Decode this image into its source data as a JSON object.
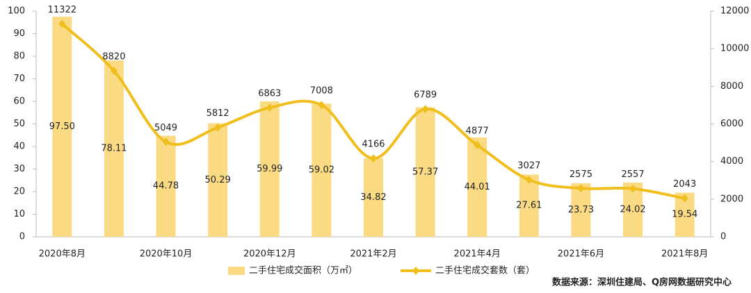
{
  "chart_data": {
    "type": "bar-line",
    "categories": [
      "2020年8月",
      null,
      "2020年10月",
      null,
      "2020年12月",
      null,
      "2021年2月",
      null,
      "2021年4月",
      null,
      "2021年6月",
      null,
      "2021年8月"
    ],
    "series": [
      {
        "name": "二手住宅成交面积（万㎡）",
        "type": "bar",
        "color": "#fadb84",
        "values": [
          97.5,
          78.11,
          44.78,
          50.29,
          59.99,
          59.02,
          34.82,
          57.37,
          44.01,
          27.61,
          23.73,
          24.02,
          19.54
        ],
        "value_labels": [
          "97.50",
          "78.11",
          "44.78",
          "50.29",
          "59.99",
          "59.02",
          "34.82",
          "57.37",
          "44.01",
          "27.61",
          "23.73",
          "24.02",
          "19.54"
        ]
      },
      {
        "name": "二手住宅成交套数（套）",
        "type": "line",
        "axis": "y2",
        "color": "#f0bf1e",
        "values": [
          11322,
          8820,
          5049,
          5812,
          6863,
          7008,
          4166,
          6789,
          4877,
          3027,
          2575,
          2557,
          2043
        ]
      }
    ],
    "ylim": [
      0,
      100
    ],
    "yticks": [
      0,
      10,
      20,
      30,
      40,
      50,
      60,
      70,
      80,
      90,
      100
    ],
    "y2lim": [
      0,
      12000
    ],
    "y2ticks": [
      0,
      2000,
      4000,
      6000,
      8000,
      10000,
      12000
    ],
    "legend": "bottom",
    "source": "数据来源：深圳住建局、Q房网数据研究中心"
  }
}
